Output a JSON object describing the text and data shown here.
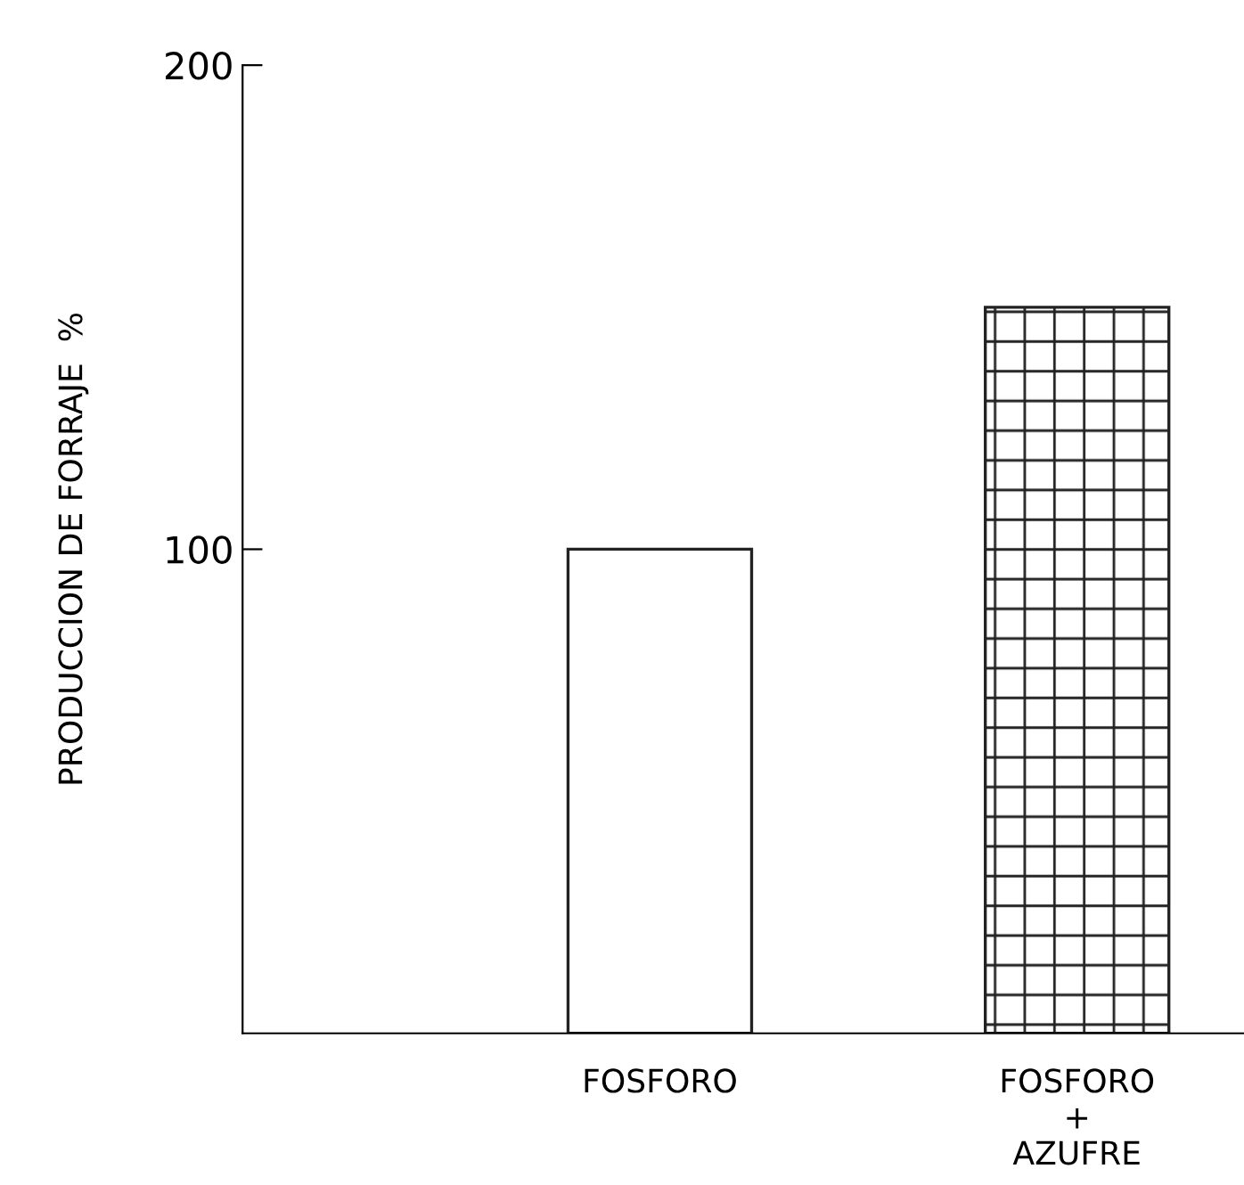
{
  "chart_data": {
    "type": "bar",
    "ylabel": "PRODUCCION DE FORRAJE  %",
    "categories": [
      "FOSFORO",
      "FOSFORO\n+\nAZUFRE"
    ],
    "values": [
      100,
      150
    ],
    "colors": [
      "#ffffff",
      "#222222"
    ],
    "ylim": [
      0,
      200
    ],
    "yticks": [
      100,
      200
    ],
    "grid": false,
    "legend": false
  }
}
